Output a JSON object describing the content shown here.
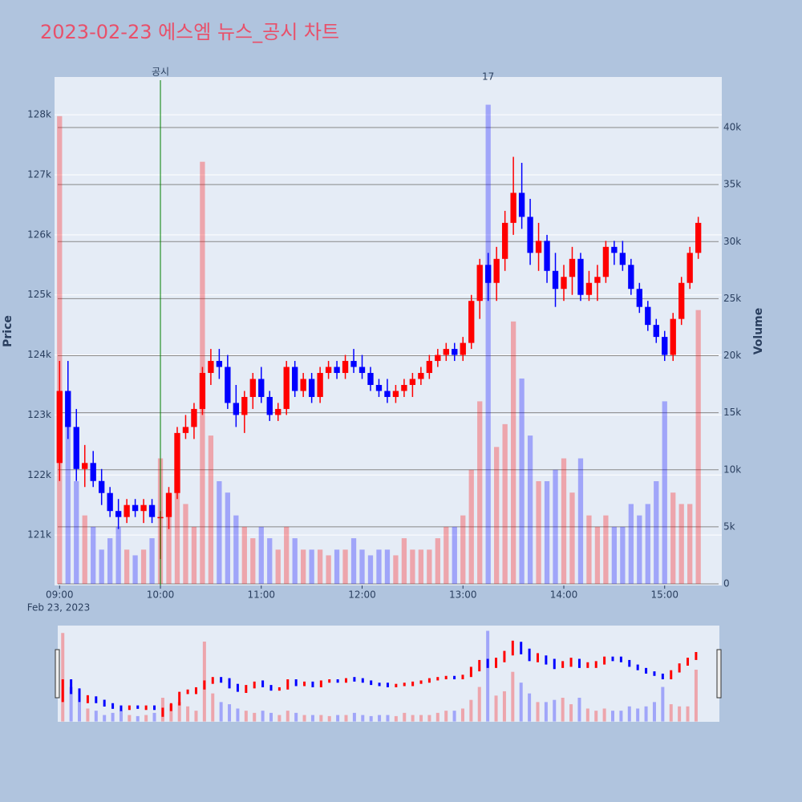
{
  "chart_data": {
    "type": "candlestick",
    "title": "2023-02-23 에스엠 뉴스_공시 차트",
    "y_title": "Price",
    "y2_title": "Volume",
    "x_date_label": "Feb 23, 2023",
    "increasing_color": "#ff0000",
    "decreasing_color": "#0000ff",
    "x": [
      "09:00",
      "09:05",
      "09:10",
      "09:15",
      "09:20",
      "09:25",
      "09:30",
      "09:35",
      "09:40",
      "09:45",
      "09:50",
      "09:55",
      "10:00",
      "10:05",
      "10:10",
      "10:15",
      "10:20",
      "10:25",
      "10:30",
      "10:35",
      "10:40",
      "10:45",
      "10:50",
      "10:55",
      "11:00",
      "11:05",
      "11:10",
      "11:15",
      "11:20",
      "11:25",
      "11:30",
      "11:35",
      "11:40",
      "11:45",
      "11:50",
      "11:55",
      "12:00",
      "12:05",
      "12:10",
      "12:15",
      "12:20",
      "12:25",
      "12:30",
      "12:35",
      "12:40",
      "12:45",
      "12:50",
      "12:55",
      "13:00",
      "13:05",
      "13:10",
      "13:15",
      "13:20",
      "13:25",
      "13:30",
      "13:35",
      "13:40",
      "13:45",
      "13:50",
      "13:55",
      "14:00",
      "14:05",
      "14:10",
      "14:15",
      "14:20",
      "14:25",
      "14:30",
      "14:35",
      "14:40",
      "14:45",
      "14:50",
      "14:55",
      "15:00",
      "15:05",
      "15:10",
      "15:15",
      "15:20"
    ],
    "open": [
      122200,
      123400,
      122800,
      122100,
      122200,
      121900,
      121700,
      121400,
      121300,
      121500,
      121400,
      121500,
      121300,
      121300,
      121700,
      122700,
      122800,
      123100,
      123700,
      123900,
      123800,
      123200,
      123000,
      123300,
      123600,
      123300,
      123000,
      123100,
      123800,
      123400,
      123600,
      123300,
      123700,
      123800,
      123700,
      123900,
      123800,
      123700,
      123500,
      123400,
      123300,
      123400,
      123500,
      123600,
      123700,
      123900,
      124000,
      124100,
      124000,
      124200,
      124900,
      125500,
      125200,
      125600,
      126200,
      126700,
      126300,
      125700,
      125900,
      125400,
      125100,
      125300,
      125600,
      125000,
      125200,
      125300,
      125800,
      125700,
      125500,
      125100,
      124800,
      124500,
      124300,
      124000,
      124600,
      125200,
      125700
    ],
    "high": [
      123900,
      123900,
      123100,
      122500,
      122400,
      122100,
      121800,
      121600,
      121600,
      121600,
      121600,
      121600,
      121400,
      121800,
      122800,
      123000,
      123200,
      123800,
      124100,
      124100,
      124000,
      123500,
      123400,
      123700,
      123800,
      123400,
      123200,
      123900,
      123900,
      123700,
      123700,
      123800,
      123900,
      123900,
      124000,
      124100,
      124000,
      123800,
      123600,
      123600,
      123500,
      123600,
      123700,
      123800,
      124000,
      124100,
      124200,
      124200,
      124300,
      125000,
      125600,
      125700,
      125800,
      126400,
      127300,
      127200,
      126600,
      126200,
      126000,
      125700,
      125500,
      125800,
      125700,
      125400,
      125500,
      125900,
      125900,
      125900,
      125600,
      125200,
      124900,
      124600,
      124400,
      124700,
      125300,
      125800,
      126300
    ],
    "low": [
      121900,
      122600,
      121900,
      121800,
      121800,
      121500,
      121300,
      121100,
      121200,
      121300,
      121200,
      121200,
      120600,
      121100,
      121600,
      122600,
      122600,
      123000,
      123500,
      123600,
      123100,
      122800,
      122700,
      123100,
      123200,
      122900,
      122900,
      123000,
      123300,
      123300,
      123200,
      123200,
      123600,
      123600,
      123600,
      123700,
      123600,
      123400,
      123300,
      123200,
      123200,
      123300,
      123300,
      123500,
      123600,
      123800,
      123900,
      123900,
      123900,
      124100,
      124600,
      124900,
      124900,
      125400,
      126000,
      126100,
      125500,
      125400,
      125200,
      124800,
      124900,
      125000,
      124900,
      124900,
      124900,
      125200,
      125500,
      125400,
      125000,
      124700,
      124400,
      124200,
      123900,
      123900,
      124500,
      125100,
      125600
    ],
    "close": [
      123400,
      122800,
      122100,
      122200,
      121900,
      121700,
      121400,
      121300,
      121500,
      121400,
      121500,
      121300,
      121300,
      121700,
      122700,
      122800,
      123100,
      123700,
      123900,
      123800,
      123200,
      123000,
      123300,
      123600,
      123300,
      123000,
      123100,
      123800,
      123400,
      123600,
      123300,
      123700,
      123800,
      123700,
      123900,
      123800,
      123700,
      123500,
      123400,
      123300,
      123400,
      123500,
      123600,
      123700,
      123900,
      124000,
      124100,
      124000,
      124200,
      124900,
      125500,
      125200,
      125600,
      126200,
      126700,
      126300,
      125700,
      125900,
      125400,
      125100,
      125300,
      125600,
      125000,
      125200,
      125300,
      125800,
      125700,
      125500,
      125100,
      124800,
      124500,
      124300,
      124000,
      124600,
      125200,
      125700,
      126200
    ],
    "volume": [
      41000,
      16000,
      9000,
      6000,
      5000,
      3000,
      4000,
      5000,
      3000,
      2500,
      3000,
      4000,
      11000,
      8000,
      9000,
      7000,
      5000,
      37000,
      13000,
      9000,
      8000,
      6000,
      5000,
      4000,
      5000,
      4000,
      3000,
      5000,
      4000,
      3000,
      3000,
      3000,
      2500,
      3000,
      3000,
      4000,
      3000,
      2500,
      3000,
      3000,
      2500,
      4000,
      3000,
      3000,
      3000,
      4000,
      5000,
      5000,
      6000,
      10000,
      16000,
      42000,
      12000,
      14000,
      23000,
      18000,
      13000,
      9000,
      9000,
      10000,
      11000,
      8000,
      11000,
      6000,
      5000,
      6000,
      5000,
      5000,
      7000,
      6000,
      7000,
      9000,
      16000,
      8000,
      7000,
      7000,
      24000
    ],
    "xlim": [
      "08:57",
      "15:34"
    ],
    "xticks": [
      "09:00",
      "10:00",
      "11:00",
      "12:00",
      "13:00",
      "14:00",
      "15:00"
    ],
    "ylim": [
      120160,
      128630
    ],
    "yticks": [
      {
        "value": 121000,
        "label": "121k"
      },
      {
        "value": 122000,
        "label": "122k"
      },
      {
        "value": 123000,
        "label": "123k"
      },
      {
        "value": 124000,
        "label": "124k"
      },
      {
        "value": 125000,
        "label": "125k"
      },
      {
        "value": 126000,
        "label": "126k"
      },
      {
        "value": 127000,
        "label": "127k"
      },
      {
        "value": 128000,
        "label": "128k"
      }
    ],
    "y2lim": [
      -140,
      44430
    ],
    "y2ticks": [
      0,
      {
        "value": 5000,
        "label": "5k"
      },
      {
        "value": 10000,
        "label": "10k"
      },
      {
        "value": 15000,
        "label": "15k"
      },
      {
        "value": 20000,
        "label": "20k"
      },
      {
        "value": 25000,
        "label": "25k"
      },
      {
        "value": 30000,
        "label": "30k"
      },
      {
        "value": 35000,
        "label": "35k"
      },
      {
        "value": 40000,
        "label": "40k"
      }
    ],
    "annotations": [
      {
        "x": "10:00",
        "text": "공시",
        "color": "green"
      },
      {
        "x": "13:15",
        "text": "17"
      }
    ],
    "grid": true,
    "rangeslider": true
  }
}
